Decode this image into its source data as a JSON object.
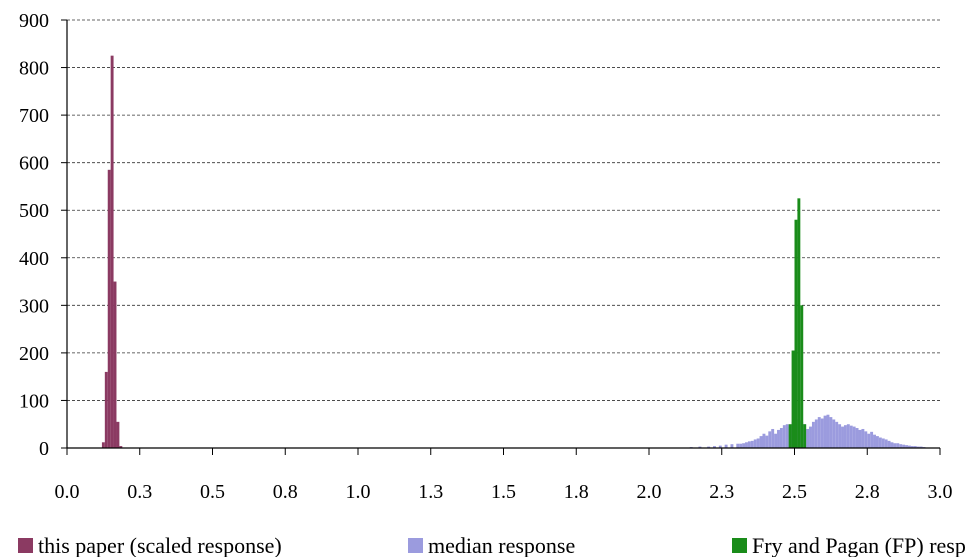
{
  "chart_data": {
    "type": "bar",
    "title": "",
    "xlabel": "",
    "ylabel": "",
    "xlim": [
      0.0,
      3.0
    ],
    "ylim": [
      0,
      900
    ],
    "x_ticks": [
      0.0,
      0.25,
      0.5,
      0.75,
      1.0,
      1.25,
      1.5,
      1.75,
      2.0,
      2.25,
      2.5,
      2.75,
      3.0
    ],
    "x_tick_labels": [
      "0.0",
      "0.3",
      "0.5",
      "0.8",
      "1.0",
      "1.3",
      "1.5",
      "1.8",
      "2.0",
      "2.3",
      "2.5",
      "2.8",
      "3.0"
    ],
    "y_ticks": [
      0,
      100,
      200,
      300,
      400,
      500,
      600,
      700,
      800,
      900
    ],
    "y_tick_labels": [
      "0",
      "100",
      "200",
      "300",
      "400",
      "500",
      "600",
      "700",
      "800",
      "900"
    ],
    "grid": "horizontal dashed",
    "legend_position": "bottom",
    "bin_width": 0.01,
    "series": [
      {
        "name": "median response",
        "color": "#9b9bde",
        "x": [
          2.14,
          2.17,
          2.2,
          2.22,
          2.24,
          2.26,
          2.28,
          2.3,
          2.31,
          2.32,
          2.33,
          2.34,
          2.35,
          2.36,
          2.37,
          2.38,
          2.39,
          2.4,
          2.41,
          2.42,
          2.43,
          2.44,
          2.45,
          2.46,
          2.47,
          2.48,
          2.49,
          2.5,
          2.51,
          2.52,
          2.53,
          2.54,
          2.55,
          2.56,
          2.57,
          2.58,
          2.59,
          2.6,
          2.61,
          2.62,
          2.63,
          2.64,
          2.65,
          2.66,
          2.67,
          2.68,
          2.69,
          2.7,
          2.71,
          2.72,
          2.73,
          2.74,
          2.75,
          2.76,
          2.77,
          2.78,
          2.79,
          2.8,
          2.81,
          2.82,
          2.83,
          2.84,
          2.85,
          2.86,
          2.87,
          2.88,
          2.89,
          2.9,
          2.91,
          2.92,
          2.93,
          2.94
        ],
        "values": [
          2,
          3,
          3,
          4,
          5,
          7,
          8,
          9,
          9,
          10,
          12,
          14,
          15,
          18,
          20,
          25,
          30,
          26,
          35,
          40,
          30,
          38,
          42,
          48,
          50,
          45,
          55,
          60,
          58,
          55,
          50,
          40,
          45,
          55,
          60,
          65,
          62,
          68,
          70,
          65,
          60,
          55,
          50,
          45,
          48,
          50,
          47,
          45,
          42,
          38,
          40,
          35,
          30,
          34,
          28,
          25,
          22,
          20,
          18,
          15,
          12,
          10,
          10,
          8,
          7,
          6,
          5,
          4,
          4,
          3,
          3,
          2
        ]
      },
      {
        "name": "this paper (scaled response)",
        "color": "#8b3a62",
        "x": [
          0.12,
          0.13,
          0.14,
          0.15,
          0.16,
          0.17,
          0.18
        ],
        "values": [
          12,
          160,
          585,
          825,
          350,
          55,
          4
        ]
      },
      {
        "name": "Fry and Pagan (FP) response",
        "color": "#1a8c1a",
        "x": [
          2.48,
          2.49,
          2.5,
          2.51,
          2.52,
          2.53
        ],
        "values": [
          50,
          205,
          480,
          525,
          300,
          50
        ]
      }
    ]
  }
}
